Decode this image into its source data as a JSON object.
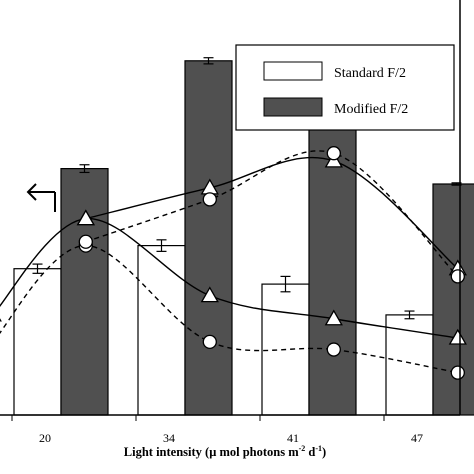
{
  "chart_data": {
    "type": "bar",
    "xlabel_parts": {
      "pre": "Light intensity (",
      "mu": "μ",
      "mid": " mol photons m",
      "exp1": "-2",
      "mid2": " d",
      "exp2": "-1",
      "post": ")"
    },
    "categories": [
      "20",
      "34",
      "41",
      "47"
    ],
    "ylim": [
      0,
      100
    ],
    "series": [
      {
        "name": "Standard F/2",
        "values": [
          38,
          44,
          34,
          26
        ],
        "errors": [
          1.2,
          1.5,
          2.0,
          1.0
        ],
        "color": "#ffffff"
      },
      {
        "name": "Modified F/2",
        "values": [
          64,
          92,
          83,
          60
        ],
        "errors": [
          1.0,
          0.8,
          0.5,
          0.3
        ],
        "color": "#505050"
      }
    ],
    "lines": [
      {
        "marker": "triangle",
        "style": "solid",
        "points": [
          {
            "x": -0.55,
            "y": 26
          },
          {
            "x": 0.2,
            "y": 51
          },
          {
            "x": 1.2,
            "y": 31
          },
          {
            "x": 2.2,
            "y": 25
          },
          {
            "x": 3.2,
            "y": 20
          }
        ]
      },
      {
        "marker": "circle",
        "style": "dashed",
        "points": [
          {
            "x": -0.55,
            "y": 19
          },
          {
            "x": 0.2,
            "y": 44
          },
          {
            "x": 1.2,
            "y": 19
          },
          {
            "x": 2.2,
            "y": 17
          },
          {
            "x": 3.2,
            "y": 11
          }
        ]
      },
      {
        "marker": "triangle",
        "style": "solid",
        "points": [
          {
            "x": 0.2,
            "y": 51
          },
          {
            "x": 1.2,
            "y": 59
          },
          {
            "x": 2.2,
            "y": 66
          },
          {
            "x": 3.2,
            "y": 38
          }
        ]
      },
      {
        "marker": "circle",
        "style": "dashed",
        "points": [
          {
            "x": 0.2,
            "y": 45
          },
          {
            "x": 1.2,
            "y": 56
          },
          {
            "x": 2.2,
            "y": 68
          },
          {
            "x": 3.2,
            "y": 36
          }
        ]
      }
    ],
    "legend_position": "top-right",
    "grid": false
  }
}
